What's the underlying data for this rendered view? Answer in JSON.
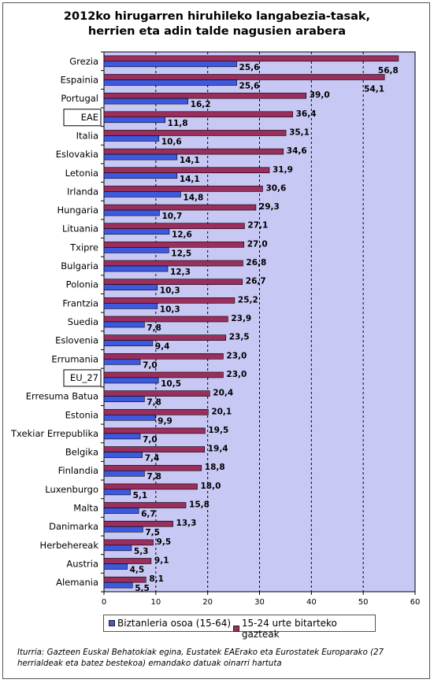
{
  "title_line1": "2012ko hirugarren hiruhileko langabezia-tasak,",
  "title_line2": "herrien eta adin talde nagusien arabera",
  "legend": {
    "series1": "Biztanleria osoa (15-64)",
    "series2": "15-24 urte bitarteko gazteak"
  },
  "source": "Iturria: Gazteen Euskal Behatokiak egina, Eustatek EAErako eta Eurostatek Europarako (27 herrialdeak eta batez bestekoa) emandako datuak oinarri hartuta",
  "colors": {
    "series1": "#3d59e0",
    "series2": "#9a2e5c",
    "plot_bg": "#c8c8f5"
  },
  "chart_data": {
    "type": "bar",
    "orientation": "horizontal",
    "categories": [
      "Grezia",
      "Espainia",
      "Portugal",
      "EAE",
      "Italia",
      "Eslovakia",
      "Letonia",
      "Irlanda",
      "Hungaria",
      "Lituania",
      "Txipre",
      "Bulgaria",
      "Polonia",
      "Frantzia",
      "Suedia",
      "Eslovenia",
      "Errumania",
      "EU_27",
      "Erresuma Batua",
      "Estonia",
      "Txekiar Errepublika",
      "Belgika",
      "Finlandia",
      "Luxenburgo",
      "Malta",
      "Danimarka",
      "Herbehereak",
      "Austria",
      "Alemania"
    ],
    "highlighted_categories": [
      "EAE",
      "EU_27"
    ],
    "series": [
      {
        "name": "Biztanleria osoa (15-64)",
        "values": [
          25.6,
          25.6,
          16.2,
          11.8,
          10.6,
          14.1,
          14.1,
          14.8,
          10.7,
          12.6,
          12.5,
          12.3,
          10.3,
          10.3,
          7.8,
          9.4,
          7.0,
          10.5,
          7.8,
          9.9,
          7.0,
          7.4,
          7.8,
          5.1,
          6.7,
          7.5,
          5.3,
          4.5,
          5.5
        ],
        "labels": [
          "25,6",
          "25,6",
          "16,2",
          "11,8",
          "10,6",
          "14,1",
          "14,1",
          "14,8",
          "10,7",
          "12,6",
          "12,5",
          "12,3",
          "10,3",
          "10,3",
          "7,8",
          "9,4",
          "7,0",
          "10,5",
          "7,8",
          "9,9",
          "7,0",
          "7,4",
          "7,8",
          "5,1",
          "6,7",
          "7,5",
          "5,3",
          "4,5",
          "5,5"
        ]
      },
      {
        "name": "15-24 urte bitarteko gazteak",
        "values": [
          56.8,
          54.1,
          39.0,
          36.4,
          35.1,
          34.6,
          31.9,
          30.6,
          29.3,
          27.1,
          27.0,
          26.8,
          26.7,
          25.2,
          23.9,
          23.5,
          23.0,
          23.0,
          20.4,
          20.1,
          19.5,
          19.4,
          18.8,
          18.0,
          15.8,
          13.3,
          9.5,
          9.1,
          8.1
        ],
        "labels": [
          "56,8",
          "54,1",
          "39,0",
          "36,4",
          "35,1",
          "34,6",
          "31,9",
          "30,6",
          "29,3",
          "27,1",
          "27,0",
          "26,8",
          "26,7",
          "25,2",
          "23,9",
          "23,5",
          "23,0",
          "23,0",
          "20,4",
          "20,1",
          "19,5",
          "19,4",
          "18,8",
          "18,0",
          "15,8",
          "13,3",
          "9,5",
          "9,1",
          "8,1"
        ]
      }
    ],
    "xlim": [
      0,
      60
    ],
    "xticks": [
      "0",
      "10",
      "20",
      "30",
      "40",
      "50",
      "60"
    ],
    "grid": "vertical dashed",
    "legend_position": "bottom"
  }
}
